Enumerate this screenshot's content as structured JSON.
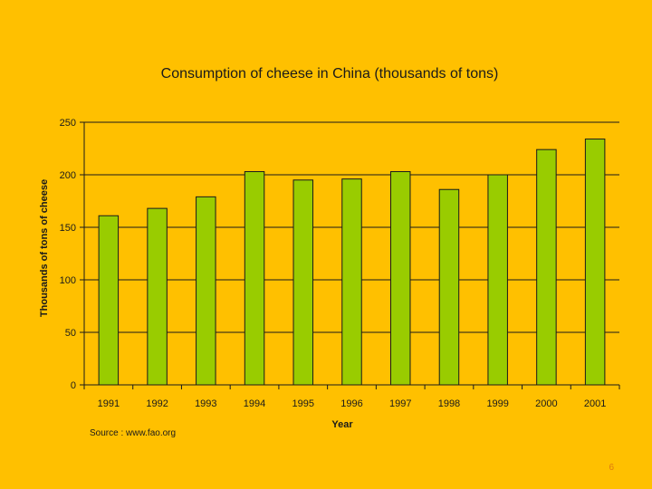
{
  "slide": {
    "source_note": "Source : www.fao.org",
    "page_number": "6"
  },
  "colors": {
    "background": "#FFC000",
    "bar_fill": "#99CC00",
    "bar_stroke": "#1a1a1a",
    "grid": "#1a1a1a"
  },
  "chart_data": {
    "type": "bar",
    "title": "Consumption of cheese in China (thousands of tons)",
    "xlabel": "Year",
    "ylabel": "Thousands of tons of cheese",
    "categories": [
      "1991",
      "1992",
      "1993",
      "1994",
      "1995",
      "1996",
      "1997",
      "1998",
      "1999",
      "2000",
      "2001"
    ],
    "values": [
      161,
      168,
      179,
      203,
      195,
      196,
      203,
      186,
      200,
      224,
      234
    ],
    "ylim": [
      0,
      250
    ],
    "yticks": [
      "0",
      "50",
      "100",
      "150",
      "200",
      "250"
    ],
    "grid": true,
    "legend": "none"
  }
}
